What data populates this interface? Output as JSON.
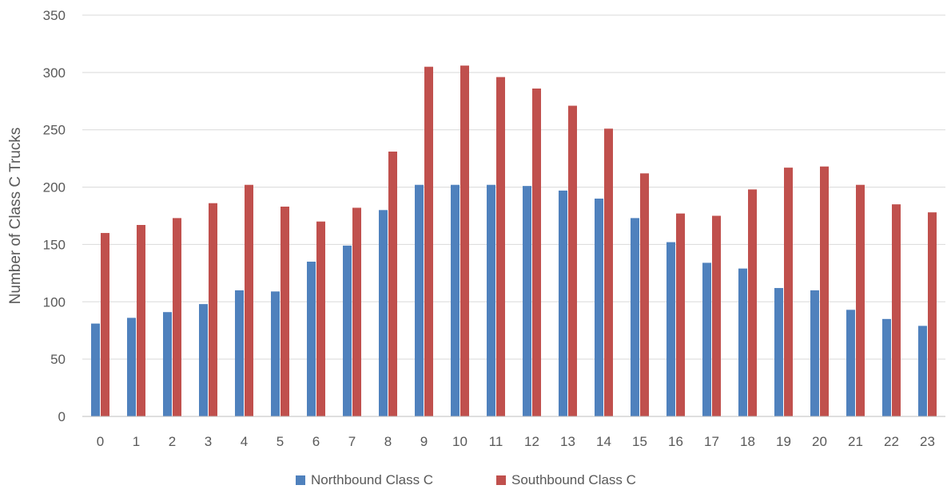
{
  "chart_data": {
    "type": "bar",
    "title": "",
    "xlabel": "",
    "ylabel": "Number of Class C Trucks",
    "ylim": [
      0,
      350
    ],
    "yticks": [
      0,
      50,
      100,
      150,
      200,
      250,
      300,
      350
    ],
    "grid": true,
    "legend_position": "bottom",
    "categories": [
      "0",
      "1",
      "2",
      "3",
      "4",
      "5",
      "6",
      "7",
      "8",
      "9",
      "10",
      "11",
      "12",
      "13",
      "14",
      "15",
      "16",
      "17",
      "18",
      "19",
      "20",
      "21",
      "22",
      "23"
    ],
    "series": [
      {
        "name": "Northbound Class C",
        "color": "#4f81bd",
        "values": [
          81,
          86,
          91,
          98,
          110,
          109,
          135,
          149,
          180,
          202,
          202,
          202,
          201,
          197,
          190,
          173,
          152,
          134,
          129,
          112,
          110,
          93,
          85,
          79
        ]
      },
      {
        "name": "Southbound Class C",
        "color": "#c0504d",
        "values": [
          160,
          167,
          173,
          186,
          202,
          183,
          170,
          182,
          231,
          305,
          306,
          296,
          286,
          271,
          251,
          212,
          177,
          175,
          198,
          217,
          218,
          202,
          185,
          178
        ]
      }
    ]
  }
}
